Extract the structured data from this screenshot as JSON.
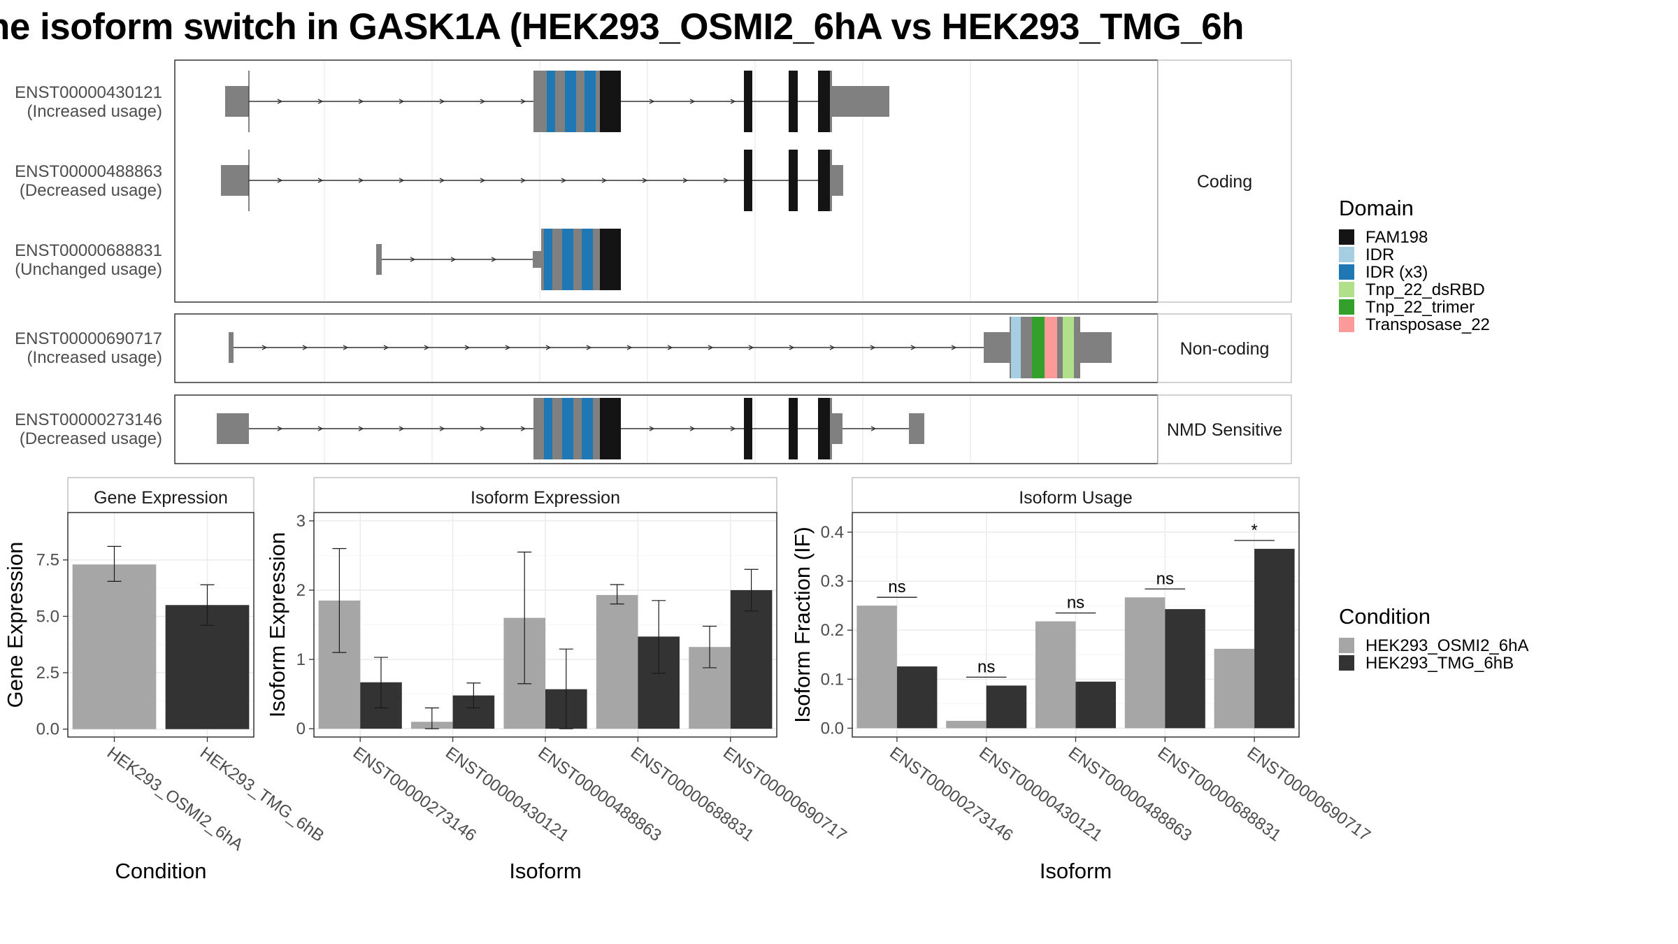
{
  "title": "ne isoform switch in GASK1A (HEK293_OSMI2_6hA vs HEK293_TMG_6h",
  "colors": {
    "exon": "#808080",
    "FAM198": "#141414",
    "IDR": "#a6cee3",
    "IDR (x3)": "#1f78b4",
    "Tnp_22_dsRBD": "#b2df8a",
    "Tnp_22_trimer": "#33a02c",
    "Transposase_22": "#fb9a99",
    "cond1": "#a6a6a6",
    "cond2": "#333333",
    "grid": "#ebebeb",
    "strip": "#f2f2f2"
  },
  "transcript_panel": {
    "groups": [
      {
        "label": "Coding",
        "transcripts": [
          {
            "id": "ENST00000430121",
            "status": "(Increased usage)"
          },
          {
            "id": "ENST00000488863",
            "status": "(Decreased usage)"
          },
          {
            "id": "ENST00000688831",
            "status": "(Unchanged usage)"
          }
        ]
      },
      {
        "label": "Non-coding",
        "transcripts": [
          {
            "id": "ENST00000690717",
            "status": "(Increased usage)"
          }
        ]
      },
      {
        "label": "NMD Sensitive",
        "transcripts": [
          {
            "id": "ENST00000273146",
            "status": "(Decreased usage)"
          }
        ]
      }
    ]
  },
  "legend_domain": {
    "title": "Domain",
    "items": [
      "FAM198",
      "IDR",
      "IDR (x3)",
      "Tnp_22_dsRBD",
      "Tnp_22_trimer",
      "Transposase_22"
    ]
  },
  "legend_condition": {
    "title": "Condition",
    "items": [
      "HEK293_OSMI2_6hA",
      "HEK293_TMG_6hB"
    ]
  },
  "chart_data": [
    {
      "type": "bar",
      "title": "Gene Expression",
      "xlabel": "Condition",
      "ylabel": "Gene Expression",
      "categories": [
        "HEK293_OSMI2_6hA",
        "HEK293_TMG_6hB"
      ],
      "values": [
        7.3,
        5.5
      ],
      "error_low": [
        6.55,
        4.6
      ],
      "error_high": [
        8.1,
        6.4
      ],
      "ylim": [
        -0.35,
        9.6
      ],
      "yticks": [
        0.0,
        2.5,
        5.0,
        7.5
      ],
      "ytick_labels": [
        "0.0",
        "2.5",
        "5.0",
        "7.5"
      ]
    },
    {
      "type": "bar",
      "title": "Isoform Expression",
      "xlabel": "Isoform",
      "ylabel": "Isoform Expression",
      "categories": [
        "ENST00000273146",
        "ENST00000430121",
        "ENST00000488863",
        "ENST00000688831",
        "ENST00000690717"
      ],
      "series": [
        {
          "name": "HEK293_OSMI2_6hA",
          "values": [
            1.85,
            0.1,
            1.6,
            1.93,
            1.18
          ],
          "error_low": [
            1.1,
            0.0,
            0.65,
            1.8,
            0.88
          ],
          "error_high": [
            2.6,
            0.3,
            2.55,
            2.08,
            1.48
          ]
        },
        {
          "name": "HEK293_TMG_6hB",
          "values": [
            0.67,
            0.48,
            0.57,
            1.33,
            2.0
          ],
          "error_low": [
            0.3,
            0.3,
            0.0,
            0.8,
            1.7
          ],
          "error_high": [
            1.03,
            0.66,
            1.15,
            1.85,
            2.3
          ]
        }
      ],
      "ylim": [
        -0.12,
        3.12
      ],
      "yticks": [
        0,
        1,
        2,
        3
      ],
      "ytick_labels": [
        "0",
        "1",
        "2",
        "3"
      ]
    },
    {
      "type": "bar",
      "title": "Isoform Usage",
      "xlabel": "Isoform",
      "ylabel": "Isoform Fraction (IF)",
      "categories": [
        "ENST00000273146",
        "ENST00000430121",
        "ENST00000488863",
        "ENST00000688831",
        "ENST00000690717"
      ],
      "series": [
        {
          "name": "HEK293_OSMI2_6hA",
          "values": [
            0.25,
            0.015,
            0.218,
            0.267,
            0.162
          ]
        },
        {
          "name": "HEK293_TMG_6hB",
          "values": [
            0.126,
            0.087,
            0.095,
            0.243,
            0.366
          ]
        }
      ],
      "significance": [
        "ns",
        "ns",
        "ns",
        "ns",
        "*"
      ],
      "ylim": [
        -0.018,
        0.44
      ],
      "yticks": [
        0.0,
        0.1,
        0.2,
        0.3,
        0.4
      ],
      "ytick_labels": [
        "0.0",
        "0.1",
        "0.2",
        "0.3",
        "0.4"
      ]
    }
  ]
}
